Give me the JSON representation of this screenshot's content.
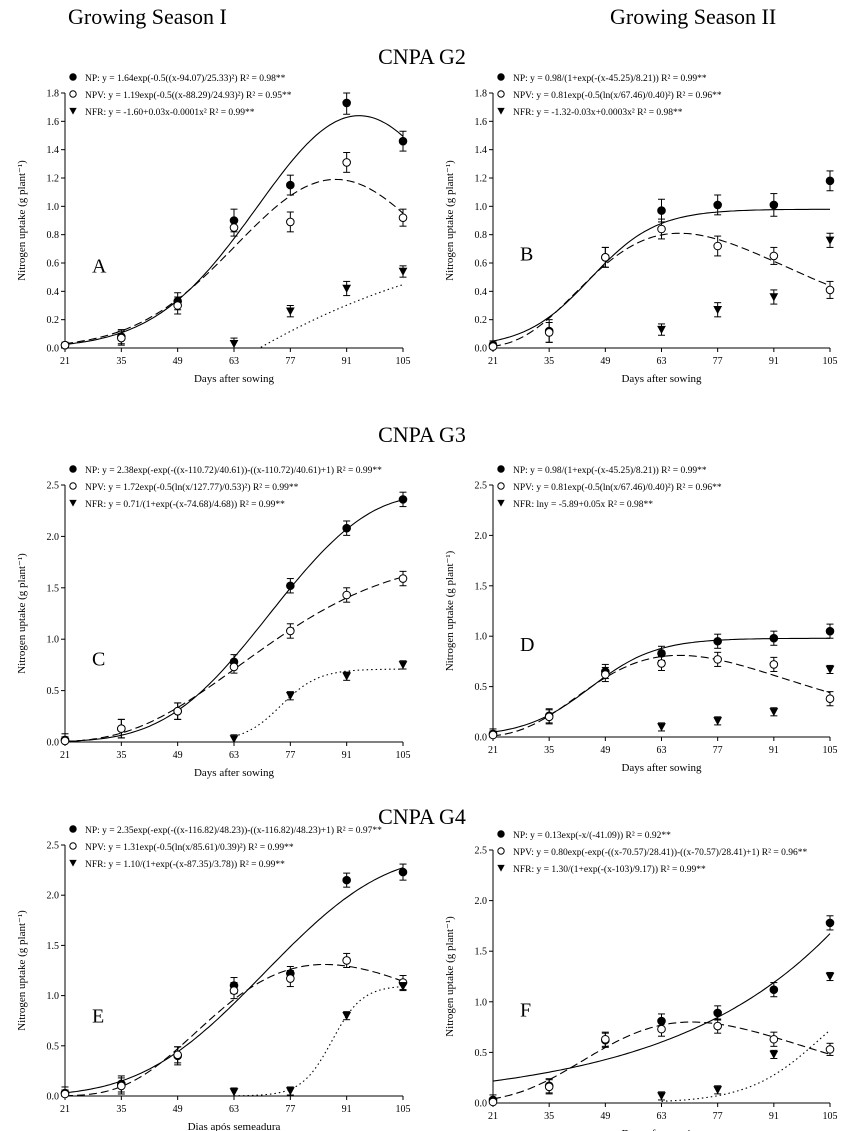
{
  "headers": {
    "season_1": "Growing Season I",
    "season_2": "Growing Season II"
  },
  "group_titles": [
    "CNPA G2",
    "CNPA G3",
    "CNPA G4"
  ],
  "chart_data": [
    {
      "id": "A",
      "type": "line",
      "panel_letter": "A",
      "x_ticks": [
        21,
        35,
        49,
        63,
        77,
        91,
        105
      ],
      "xlabel": "Days after sowing",
      "ylabel": "Nitrogen uptake (g plant⁻¹)",
      "ylim": [
        0,
        1.8
      ],
      "y_ticks": [
        0.0,
        0.2,
        0.4,
        0.6,
        0.8,
        1.0,
        1.2,
        1.4,
        1.6,
        1.8
      ],
      "series": [
        {
          "name": "NP",
          "x": [
            21,
            35,
            49,
            63,
            77,
            91,
            105
          ],
          "values": [
            0.02,
            0.08,
            0.33,
            0.9,
            1.15,
            1.73,
            1.46
          ],
          "err": [
            0.02,
            0.05,
            0.06,
            0.08,
            0.07,
            0.08,
            0.07
          ],
          "fit": "gauss",
          "p": [
            1.64,
            94.07,
            25.33
          ],
          "marker": "filled-circle",
          "line": "solid",
          "equation": "NP: y = 1.64exp(-0.5((x-94.07)/25.33)²) R² = 0.98**"
        },
        {
          "name": "NPV",
          "x": [
            21,
            35,
            49,
            63,
            77,
            91,
            105
          ],
          "values": [
            0.02,
            0.07,
            0.3,
            0.85,
            0.89,
            1.31,
            0.92
          ],
          "err": [
            0.02,
            0.05,
            0.06,
            0.06,
            0.07,
            0.07,
            0.06
          ],
          "fit": "gauss",
          "p": [
            1.19,
            88.29,
            24.93
          ],
          "marker": "open-circle",
          "line": "dashed",
          "equation": "NPV: y = 1.19exp(-0.5((x-88.29)/24.93)²) R² = 0.95**"
        },
        {
          "name": "NFR",
          "x": [
            63,
            77,
            91,
            105
          ],
          "values": [
            0.03,
            0.26,
            0.42,
            0.54
          ],
          "err": [
            0.04,
            0.04,
            0.05,
            0.04
          ],
          "fit": "quad",
          "p": [
            -1.6,
            0.03,
            -0.0001
          ],
          "marker": "filled-triangle",
          "line": "dotted",
          "equation": "NFR: y = -1.60+0.03x-0.0001x² R² = 0.99**"
        }
      ]
    },
    {
      "id": "B",
      "type": "line",
      "panel_letter": "B",
      "x_ticks": [
        21,
        35,
        49,
        63,
        77,
        91,
        105
      ],
      "xlabel": "Days after sowing",
      "ylabel": "Nitrogen uptake (g plant⁻¹)",
      "ylim": [
        0,
        1.8
      ],
      "y_ticks": [
        0.0,
        0.2,
        0.4,
        0.6,
        0.8,
        1.0,
        1.2,
        1.4,
        1.6,
        1.8
      ],
      "series": [
        {
          "name": "NP",
          "x": [
            21,
            35,
            49,
            63,
            77,
            91,
            105
          ],
          "values": [
            0.02,
            0.12,
            0.64,
            0.97,
            1.01,
            1.01,
            1.18
          ],
          "err": [
            0.03,
            0.08,
            0.07,
            0.08,
            0.07,
            0.08,
            0.07
          ],
          "fit": "logistic",
          "p": [
            0.98,
            45.25,
            8.21
          ],
          "marker": "filled-circle",
          "line": "solid",
          "equation": "NP: y = 0.98/(1+exp(-(x-45.25)/8.21)) R² = 0.99**"
        },
        {
          "name": "NPV",
          "x": [
            21,
            35,
            49,
            63,
            77,
            91,
            105
          ],
          "values": [
            0.01,
            0.11,
            0.64,
            0.84,
            0.72,
            0.65,
            0.41
          ],
          "err": [
            0.03,
            0.07,
            0.07,
            0.07,
            0.07,
            0.06,
            0.06
          ],
          "fit": "lognormal",
          "p": [
            0.81,
            67.46,
            0.4
          ],
          "marker": "open-circle",
          "line": "dashed",
          "equation": "NPV: y = 0.81exp(-0.5(ln(x/67.46)/0.40)²) R² = 0.96**"
        },
        {
          "name": "NFR",
          "x": [
            63,
            77,
            91,
            105
          ],
          "values": [
            0.13,
            0.27,
            0.36,
            0.76
          ],
          "err": [
            0.04,
            0.05,
            0.05,
            0.05
          ],
          "fit": "quad",
          "p": [
            -1.32,
            -0.03,
            0.0003
          ],
          "marker": "filled-triangle",
          "line": "dotted",
          "equation": "NFR: y = -1.32-0.03x+0.0003x² R² = 0.98**"
        }
      ]
    },
    {
      "id": "C",
      "type": "line",
      "panel_letter": "C",
      "x_ticks": [
        21,
        35,
        49,
        63,
        77,
        91,
        105
      ],
      "xlabel": "Days after sowing",
      "ylabel": "Nitrogen uptake (g plant⁻¹)",
      "ylim": [
        0,
        2.5
      ],
      "y_ticks": [
        0.0,
        0.5,
        1.0,
        1.5,
        2.0,
        2.5
      ],
      "series": [
        {
          "name": "NP",
          "x": [
            21,
            35,
            49,
            63,
            77,
            91,
            105
          ],
          "values": [
            0.02,
            0.13,
            0.3,
            0.78,
            1.52,
            2.08,
            2.36
          ],
          "err": [
            0.06,
            0.09,
            0.08,
            0.07,
            0.07,
            0.07,
            0.07
          ],
          "fit": "gompertz",
          "p": [
            2.38,
            110.72,
            40.61
          ],
          "marker": "filled-circle",
          "line": "solid",
          "equation": "NP: y = 2.38exp(-exp(-((x-110.72)/40.61))-((x-110.72)/40.61)+1) R² = 0.99**"
        },
        {
          "name": "NPV",
          "x": [
            21,
            35,
            49,
            63,
            77,
            91,
            105
          ],
          "values": [
            0.01,
            0.13,
            0.3,
            0.73,
            1.08,
            1.43,
            1.59
          ],
          "err": [
            0.04,
            0.09,
            0.08,
            0.06,
            0.07,
            0.07,
            0.07
          ],
          "fit": "lognormal",
          "p": [
            1.72,
            127.77,
            0.53
          ],
          "marker": "open-circle",
          "line": "dashed",
          "equation": "NPV: y = 1.72exp(-0.5(ln(x/127.77)/0.53)²) R² = 0.99**"
        },
        {
          "name": "NFR",
          "x": [
            63,
            77,
            91,
            105
          ],
          "values": [
            0.03,
            0.45,
            0.64,
            0.75
          ],
          "err": [
            0.04,
            0.04,
            0.04,
            0.04
          ],
          "fit": "logistic",
          "p": [
            0.71,
            74.68,
            4.68
          ],
          "marker": "filled-triangle",
          "line": "dotted",
          "equation": "NFR: y = 0.71/(1+exp(-(x-74.68)/4.68)) R² = 0.99**"
        }
      ]
    },
    {
      "id": "D",
      "type": "line",
      "panel_letter": "D",
      "x_ticks": [
        21,
        35,
        49,
        63,
        77,
        91,
        105
      ],
      "xlabel": "Days after sowing",
      "ylabel": "Nitrogen uptake (g plant⁻¹)",
      "ylim": [
        0,
        2.5
      ],
      "y_ticks": [
        0.0,
        0.5,
        1.0,
        1.5,
        2.0,
        2.5
      ],
      "series": [
        {
          "name": "NP",
          "x": [
            21,
            35,
            49,
            63,
            77,
            91,
            105
          ],
          "values": [
            0.03,
            0.21,
            0.65,
            0.83,
            0.95,
            0.98,
            1.05
          ],
          "err": [
            0.05,
            0.07,
            0.07,
            0.07,
            0.07,
            0.07,
            0.07
          ],
          "fit": "logistic",
          "p": [
            0.98,
            45.25,
            8.21
          ],
          "marker": "filled-circle",
          "line": "solid",
          "equation": "NP: y = 0.98/(1+exp(-(x-45.25)/8.21)) R² = 0.99**"
        },
        {
          "name": "NPV",
          "x": [
            21,
            35,
            49,
            63,
            77,
            91,
            105
          ],
          "values": [
            0.02,
            0.2,
            0.62,
            0.73,
            0.77,
            0.72,
            0.38
          ],
          "err": [
            0.04,
            0.07,
            0.07,
            0.07,
            0.07,
            0.07,
            0.07
          ],
          "fit": "lognormal",
          "p": [
            0.81,
            67.46,
            0.4
          ],
          "marker": "open-circle",
          "line": "dashed",
          "equation": "NPV: y = 0.81exp(-0.5(ln(x/67.46)/0.40)²) R² = 0.96**"
        },
        {
          "name": "NFR",
          "x": [
            63,
            77,
            91,
            105
          ],
          "values": [
            0.1,
            0.16,
            0.25,
            0.67
          ],
          "err": [
            0.04,
            0.04,
            0.04,
            0.04
          ],
          "fit": "exp",
          "p": [
            -5.89,
            0.05
          ],
          "marker": "filled-triangle",
          "line": "dotted",
          "equation": "NFR: lny = -5.89+0.05x R² = 0.98**"
        }
      ]
    },
    {
      "id": "E",
      "type": "line",
      "panel_letter": "E",
      "x_ticks": [
        21,
        35,
        49,
        63,
        77,
        91,
        105
      ],
      "xlabel": "Dias após semeadura",
      "ylabel": "Nitrogen uptake (g plant⁻¹)",
      "ylim": [
        0,
        2.5
      ],
      "y_ticks": [
        0.0,
        0.5,
        1.0,
        1.5,
        2.0,
        2.5
      ],
      "series": [
        {
          "name": "NP",
          "x": [
            21,
            35,
            49,
            63,
            77,
            91,
            105
          ],
          "values": [
            0.03,
            0.12,
            0.4,
            1.1,
            1.22,
            2.15,
            2.23
          ],
          "err": [
            0.06,
            0.08,
            0.09,
            0.08,
            0.07,
            0.07,
            0.08
          ],
          "fit": "gompertz",
          "p": [
            2.35,
            116.82,
            48.23
          ],
          "marker": "filled-circle",
          "line": "solid",
          "equation": "NP: y = 2.35exp(-exp(-((x-116.82)/48.23))-((x-116.82)/48.23)+1) R² = 0.97**"
        },
        {
          "name": "NPV",
          "x": [
            21,
            35,
            49,
            63,
            77,
            91,
            105
          ],
          "values": [
            0.02,
            0.1,
            0.41,
            1.05,
            1.17,
            1.35,
            1.13
          ],
          "err": [
            0.04,
            0.08,
            0.08,
            0.08,
            0.08,
            0.07,
            0.07
          ],
          "fit": "lognormal",
          "p": [
            1.31,
            85.61,
            0.39
          ],
          "marker": "open-circle",
          "line": "dashed",
          "equation": "NPV: y = 1.31exp(-0.5(ln(x/85.61)/0.39)²) R² = 0.99**"
        },
        {
          "name": "NFR",
          "x": [
            63,
            77,
            91,
            105
          ],
          "values": [
            0.04,
            0.05,
            0.8,
            1.09
          ],
          "err": [
            0.04,
            0.04,
            0.04,
            0.04
          ],
          "fit": "logistic",
          "p": [
            1.1,
            87.35,
            3.78
          ],
          "marker": "filled-triangle",
          "line": "dotted",
          "equation": "NFR: y = 1.10/(1+exp(-(x-87.35)/3.78)) R² = 0.99**"
        }
      ]
    },
    {
      "id": "F",
      "type": "line",
      "panel_letter": "F",
      "x_ticks": [
        21,
        35,
        49,
        63,
        77,
        91,
        105
      ],
      "xlabel": "Days after sowing",
      "ylabel": "Nitrogen uptake (g plant⁻¹)",
      "ylim": [
        0,
        2.5
      ],
      "y_ticks": [
        0.0,
        0.5,
        1.0,
        1.5,
        2.0,
        2.5
      ],
      "series": [
        {
          "name": "NP",
          "x": [
            21,
            35,
            49,
            63,
            77,
            91,
            105
          ],
          "values": [
            0.03,
            0.17,
            0.62,
            0.81,
            0.89,
            1.12,
            1.78
          ],
          "err": [
            0.05,
            0.07,
            0.07,
            0.07,
            0.07,
            0.07,
            0.07
          ],
          "fit": "exp",
          "p": [
            0.13,
            41.09
          ],
          "marker": "filled-circle",
          "line": "solid",
          "equation": "NP: y = 0.13exp(-x/(-41.09)) R² = 0.92**"
        },
        {
          "name": "NPV",
          "x": [
            21,
            35,
            49,
            63,
            77,
            91,
            105
          ],
          "values": [
            0.01,
            0.16,
            0.63,
            0.73,
            0.76,
            0.63,
            0.53
          ],
          "err": [
            0.04,
            0.07,
            0.07,
            0.07,
            0.07,
            0.07,
            0.06
          ],
          "fit": "gompertz",
          "p": [
            0.8,
            70.57,
            28.41
          ],
          "marker": "open-circle",
          "line": "dashed",
          "equation": "NPV: y = 0.80exp(-exp(-((x-70.57)/28.41))-((x-70.57)/28.41)+1) R² = 0.96**"
        },
        {
          "name": "NFR",
          "x": [
            63,
            77,
            91,
            105
          ],
          "values": [
            0.07,
            0.13,
            0.48,
            1.25
          ],
          "err": [
            0.04,
            0.04,
            0.04,
            0.04
          ],
          "fit": "logistic",
          "p": [
            1.3,
            103,
            9.17
          ],
          "marker": "filled-triangle",
          "line": "dotted",
          "equation": "NFR: y = 1.30/(1+exp(-(x-103)/9.17)) R² = 0.99**"
        }
      ]
    }
  ]
}
